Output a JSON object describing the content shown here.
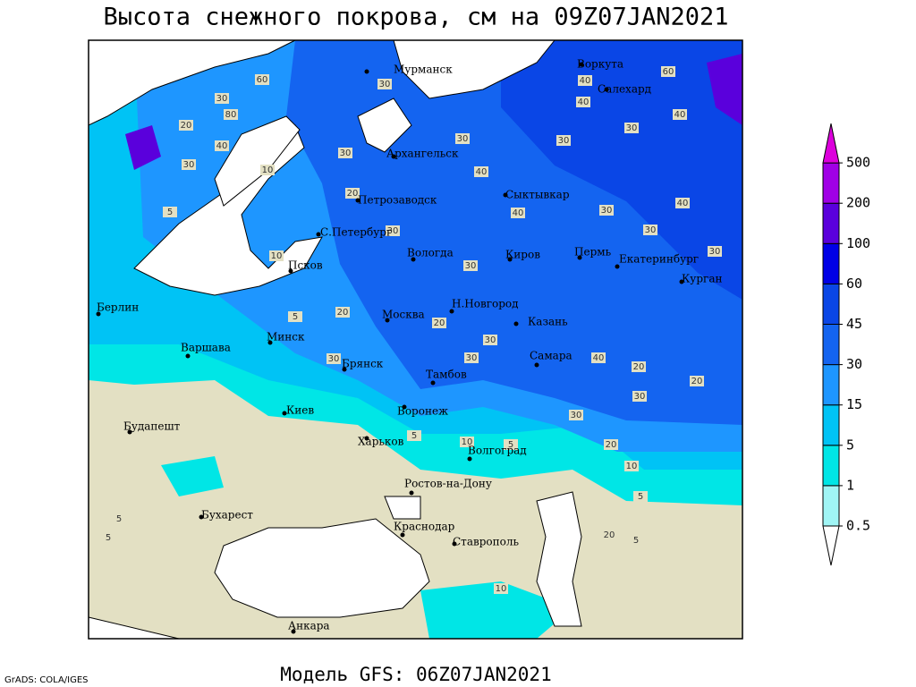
{
  "title": "Высота снежного покрова, см на 09Z07JAN2021",
  "subtitle": "Модель GFS: 06Z07JAN2021",
  "credit": "GrADS: COLA/IGES",
  "cities": [
    "Мурманск",
    "Воркута",
    "Салехард",
    "Архангельск",
    "Сыктывкар",
    "Петрозаводск",
    "С.Петербург",
    "Вологда",
    "Киров",
    "Пермь",
    "Екатеринбург",
    "Курган",
    "Псков",
    "Берлин",
    "Москва",
    "Н.Новгород",
    "Казань",
    "Минск",
    "Варшава",
    "Брянск",
    "Самара",
    "Тамбов",
    "Воронеж",
    "Киев",
    "Будапешт",
    "Харьков",
    "Волгоград",
    "Ростов-на-Дону",
    "Бухарест",
    "Краснодар",
    "Ставрополь",
    "Анкара"
  ],
  "contour_labels": [
    "60",
    "30",
    "80",
    "20",
    "40",
    "30",
    "10",
    "5",
    "30",
    "30",
    "40",
    "20",
    "40",
    "30",
    "40",
    "30",
    "30",
    "30",
    "20",
    "5",
    "30",
    "20",
    "30",
    "40",
    "20",
    "20",
    "30",
    "30",
    "20",
    "10",
    "10",
    "5",
    "5",
    "5",
    "20",
    "5",
    "5",
    "60",
    "40",
    "40",
    "40",
    "30",
    "30",
    "30",
    "30",
    "10",
    "30",
    "5",
    "10"
  ],
  "legend": {
    "levels": [
      0.5,
      1,
      5,
      15,
      30,
      45,
      60,
      100,
      200,
      500
    ],
    "colors": [
      "#ffffff",
      "#a0f5f5",
      "#00e6e6",
      "#00c3f5",
      "#1e96ff",
      "#1464f0",
      "#0a46e6",
      "#0000e6",
      "#5a00dc",
      "#a000e6",
      "#dc00dc"
    ]
  }
}
